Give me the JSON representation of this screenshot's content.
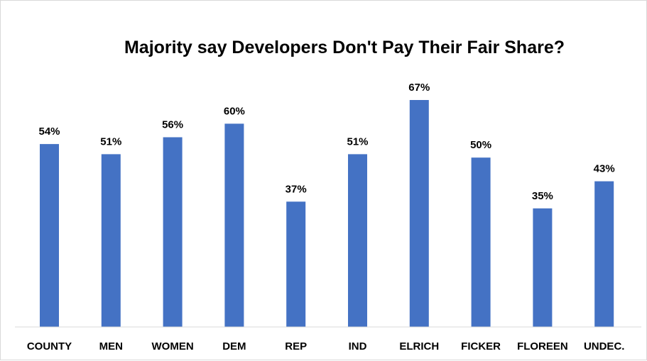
{
  "chart_data": {
    "type": "bar",
    "title": "Majority say Developers Don't Pay Their Fair Share?",
    "xlabel": "",
    "ylabel": "",
    "categories": [
      "COUNTY",
      "MEN",
      "WOMEN",
      "DEM",
      "REP",
      "IND",
      "ELRICH",
      "FICKER",
      "FLOREEN",
      "UNDEC."
    ],
    "values": [
      54,
      51,
      56,
      60,
      37,
      51,
      67,
      50,
      35,
      43
    ],
    "value_labels": [
      "54%",
      "51%",
      "56%",
      "60%",
      "37%",
      "51%",
      "67%",
      "50%",
      "35%",
      "43%"
    ],
    "value_unit": "%",
    "ylim": [
      0,
      67
    ],
    "grid": false,
    "legend": "none",
    "bar_color": "#4472C4",
    "axis_color": "#d9d9d9"
  }
}
